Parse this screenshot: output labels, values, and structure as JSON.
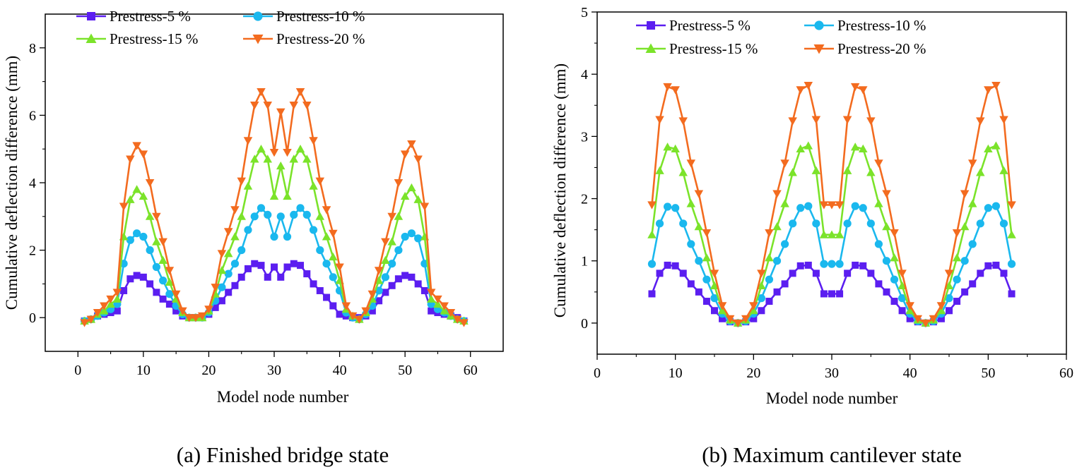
{
  "charts": [
    {
      "caption": "(a) Finished bridge state",
      "xlabel": "Model node number",
      "ylabel": "Cumulative deflection difference (mm)"
    },
    {
      "caption": "(b) Maximum cantilever state",
      "xlabel": "Model node number",
      "ylabel": "Cumulative deflection difference (mm)"
    }
  ],
  "chart_data": [
    {
      "type": "line",
      "title": "(a) Finished bridge state",
      "xlabel": "Model node number",
      "ylabel": "Cumulative deflection difference (mm)",
      "xlim": [
        -5,
        65
      ],
      "ylim": [
        -1,
        9
      ],
      "xticks": [
        0,
        10,
        20,
        30,
        40,
        50,
        60
      ],
      "yticks": [
        0,
        2,
        4,
        6,
        8
      ],
      "legend_position": "top-center",
      "x": [
        1,
        2,
        3,
        4,
        5,
        6,
        7,
        8,
        9,
        10,
        11,
        12,
        13,
        14,
        15,
        16,
        17,
        18,
        19,
        20,
        21,
        22,
        23,
        24,
        25,
        26,
        27,
        28,
        29,
        30,
        31,
        32,
        33,
        34,
        35,
        36,
        37,
        38,
        39,
        40,
        41,
        42,
        43,
        44,
        45,
        46,
        47,
        48,
        49,
        50,
        51,
        52,
        53,
        54,
        55,
        56,
        57,
        58,
        59
      ],
      "series": [
        {
          "name": "Prestress-5 %",
          "color": "#5b1ef0",
          "marker": "square",
          "values": [
            -0.1,
            -0.05,
            0.05,
            0.1,
            0.15,
            0.2,
            0.8,
            1.15,
            1.25,
            1.2,
            1.0,
            0.75,
            0.55,
            0.4,
            0.2,
            0.05,
            0.0,
            0.0,
            0.0,
            0.1,
            0.3,
            0.5,
            0.75,
            0.95,
            1.2,
            1.45,
            1.6,
            1.55,
            1.2,
            1.5,
            1.2,
            1.5,
            1.6,
            1.55,
            1.3,
            1.0,
            0.8,
            0.6,
            0.35,
            0.1,
            0.05,
            0.0,
            0.0,
            0.05,
            0.2,
            0.5,
            0.75,
            0.95,
            1.15,
            1.25,
            1.2,
            1.0,
            0.8,
            0.2,
            0.15,
            0.1,
            0.05,
            0.0,
            -0.1
          ]
        },
        {
          "name": "Prestress-10 %",
          "color": "#1ab8ee",
          "marker": "circle",
          "values": [
            -0.1,
            -0.05,
            0.05,
            0.15,
            0.25,
            0.4,
            1.6,
            2.3,
            2.5,
            2.4,
            2.0,
            1.5,
            1.1,
            0.7,
            0.35,
            0.1,
            0.0,
            0.0,
            0.0,
            0.15,
            0.5,
            0.9,
            1.3,
            1.6,
            2.0,
            2.6,
            3.0,
            3.25,
            3.05,
            2.4,
            3.0,
            2.4,
            3.05,
            3.25,
            3.05,
            2.6,
            2.0,
            1.6,
            1.2,
            0.8,
            0.15,
            0.0,
            -0.05,
            0.1,
            0.35,
            0.8,
            1.2,
            1.6,
            2.0,
            2.4,
            2.5,
            2.35,
            1.6,
            0.4,
            0.25,
            0.15,
            0.05,
            -0.05,
            -0.1
          ]
        },
        {
          "name": "Prestress-15 %",
          "color": "#7be32a",
          "marker": "triangle-up",
          "values": [
            -0.1,
            -0.05,
            0.1,
            0.2,
            0.4,
            0.55,
            2.4,
            3.5,
            3.8,
            3.6,
            3.0,
            2.25,
            1.7,
            1.05,
            0.55,
            0.15,
            0.0,
            0.0,
            0.0,
            0.2,
            0.7,
            1.4,
            1.9,
            2.4,
            3.0,
            3.9,
            4.7,
            5.0,
            4.7,
            3.6,
            4.5,
            3.6,
            4.7,
            5.0,
            4.7,
            3.9,
            3.0,
            2.4,
            1.8,
            1.1,
            0.25,
            0.05,
            -0.05,
            0.15,
            0.55,
            1.1,
            1.7,
            2.25,
            3.0,
            3.6,
            3.85,
            3.5,
            2.4,
            0.55,
            0.4,
            0.2,
            0.05,
            -0.05,
            -0.1
          ]
        },
        {
          "name": "Prestress-20 %",
          "color": "#f36b1f",
          "marker": "triangle-down",
          "values": [
            -0.15,
            -0.05,
            0.15,
            0.35,
            0.55,
            0.75,
            3.3,
            4.7,
            5.1,
            4.85,
            4.0,
            3.0,
            2.25,
            1.4,
            0.7,
            0.2,
            0.0,
            0.0,
            0.05,
            0.25,
            0.9,
            1.9,
            2.55,
            3.2,
            4.05,
            5.25,
            6.3,
            6.7,
            6.3,
            4.9,
            6.1,
            4.9,
            6.3,
            6.7,
            6.3,
            5.25,
            4.05,
            3.2,
            2.5,
            1.5,
            0.35,
            0.05,
            -0.05,
            0.2,
            0.7,
            1.4,
            2.25,
            3.0,
            4.0,
            4.85,
            5.15,
            4.7,
            3.3,
            0.75,
            0.55,
            0.35,
            0.15,
            -0.05,
            -0.15
          ]
        }
      ]
    },
    {
      "type": "line",
      "title": "(b) Maximum cantilever state",
      "xlabel": "Model node number",
      "ylabel": "Cumulative deflection difference (mm)",
      "xlim": [
        0,
        60
      ],
      "ylim": [
        -0.5,
        5
      ],
      "xticks": [
        0,
        10,
        20,
        30,
        40,
        50,
        60
      ],
      "yticks": [
        0,
        1,
        2,
        3,
        4,
        5
      ],
      "legend_position": "top-center",
      "x": [
        7,
        8,
        9,
        10,
        11,
        12,
        13,
        14,
        15,
        16,
        17,
        18,
        19,
        20,
        21,
        22,
        23,
        24,
        25,
        26,
        27,
        28,
        29,
        30,
        31,
        32,
        33,
        34,
        35,
        36,
        37,
        38,
        39,
        40,
        41,
        42,
        43,
        44,
        45,
        46,
        47,
        48,
        49,
        50,
        51,
        52,
        53
      ],
      "series": [
        {
          "name": "Prestress-5 %",
          "color": "#5b1ef0",
          "marker": "square",
          "values": [
            0.47,
            0.8,
            0.93,
            0.92,
            0.8,
            0.63,
            0.5,
            0.35,
            0.2,
            0.07,
            0.02,
            0.0,
            0.02,
            0.07,
            0.2,
            0.35,
            0.5,
            0.63,
            0.8,
            0.92,
            0.93,
            0.8,
            0.47,
            0.47,
            0.47,
            0.8,
            0.93,
            0.92,
            0.8,
            0.63,
            0.5,
            0.35,
            0.2,
            0.07,
            0.02,
            0.0,
            0.02,
            0.07,
            0.2,
            0.35,
            0.5,
            0.63,
            0.8,
            0.92,
            0.93,
            0.8,
            0.47
          ]
        },
        {
          "name": "Prestress-10 %",
          "color": "#1ab8ee",
          "marker": "circle",
          "values": [
            0.95,
            1.6,
            1.87,
            1.85,
            1.6,
            1.27,
            1.0,
            0.7,
            0.4,
            0.15,
            0.03,
            0.0,
            0.03,
            0.15,
            0.4,
            0.7,
            1.0,
            1.27,
            1.6,
            1.85,
            1.88,
            1.6,
            0.95,
            0.95,
            0.95,
            1.6,
            1.88,
            1.85,
            1.6,
            1.27,
            1.0,
            0.7,
            0.4,
            0.15,
            0.03,
            0.0,
            0.03,
            0.15,
            0.4,
            0.7,
            1.0,
            1.27,
            1.6,
            1.85,
            1.88,
            1.6,
            0.95
          ]
        },
        {
          "name": "Prestress-15 %",
          "color": "#7be32a",
          "marker": "triangle-up",
          "values": [
            1.42,
            2.45,
            2.83,
            2.8,
            2.42,
            1.92,
            1.55,
            1.05,
            0.6,
            0.2,
            0.05,
            0.0,
            0.05,
            0.2,
            0.6,
            1.05,
            1.55,
            1.92,
            2.42,
            2.8,
            2.85,
            2.45,
            1.42,
            1.42,
            1.42,
            2.45,
            2.83,
            2.8,
            2.42,
            1.92,
            1.55,
            1.05,
            0.6,
            0.2,
            0.05,
            0.0,
            0.05,
            0.2,
            0.6,
            1.05,
            1.55,
            1.92,
            2.42,
            2.8,
            2.85,
            2.45,
            1.42
          ]
        },
        {
          "name": "Prestress-20 %",
          "color": "#f36b1f",
          "marker": "triangle-down",
          "values": [
            1.9,
            3.27,
            3.8,
            3.75,
            3.25,
            2.57,
            2.08,
            1.45,
            0.8,
            0.28,
            0.07,
            0.0,
            0.07,
            0.28,
            0.8,
            1.45,
            2.08,
            2.57,
            3.25,
            3.75,
            3.82,
            3.27,
            1.9,
            1.9,
            1.9,
            3.27,
            3.8,
            3.75,
            3.25,
            2.57,
            2.08,
            1.45,
            0.8,
            0.28,
            0.07,
            0.0,
            0.07,
            0.28,
            0.8,
            1.45,
            2.08,
            2.57,
            3.25,
            3.75,
            3.82,
            3.27,
            1.9
          ]
        }
      ]
    }
  ]
}
